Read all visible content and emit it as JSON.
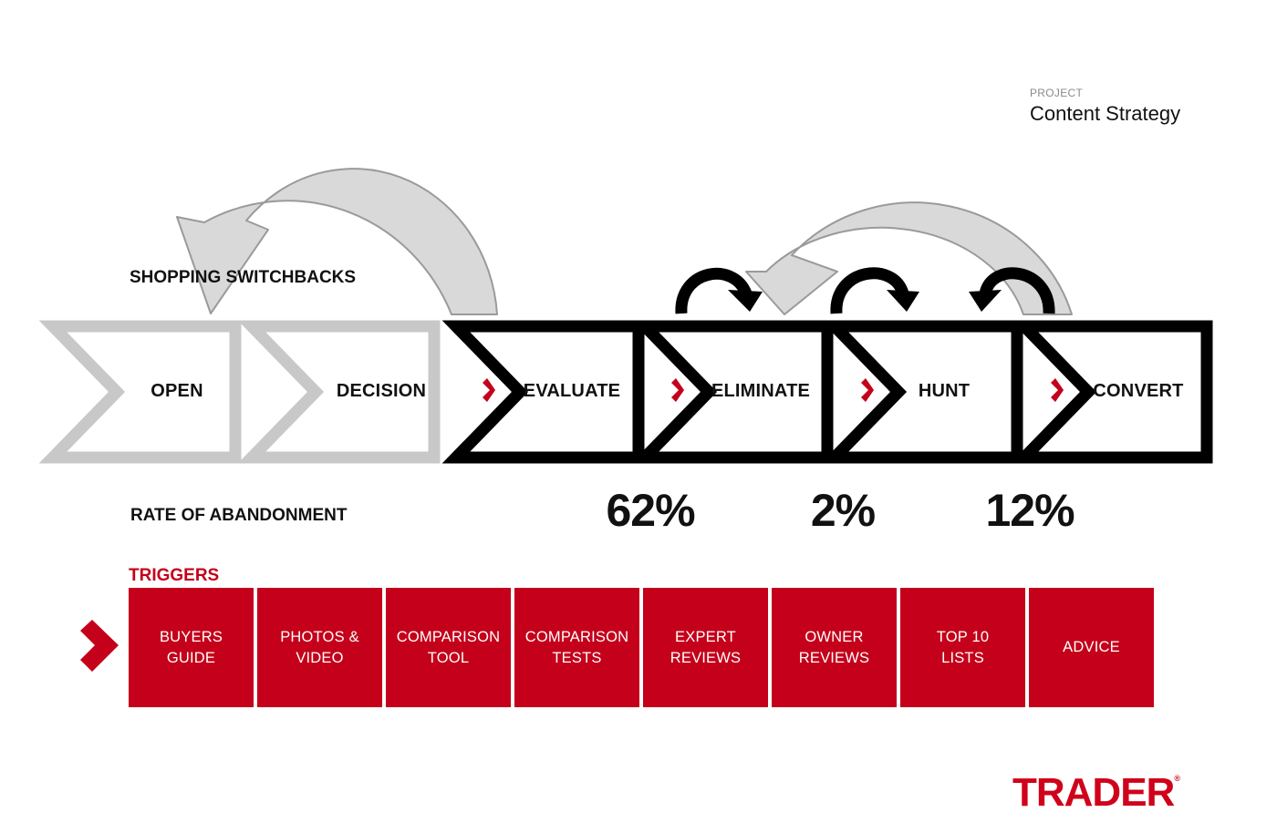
{
  "project": {
    "label": "PROJECT",
    "name": "Content Strategy"
  },
  "switchbacks_label": "SHOPPING SWITCHBACKS",
  "stages": [
    {
      "label": "OPEN",
      "style": "grey",
      "marker": false
    },
    {
      "label": "DECISION",
      "style": "grey",
      "marker": false
    },
    {
      "label": "EVALUATE",
      "style": "black",
      "marker": true
    },
    {
      "label": "ELIMINATE",
      "style": "black",
      "marker": true
    },
    {
      "label": "HUNT",
      "style": "black",
      "marker": true
    },
    {
      "label": "CONVERT",
      "style": "black",
      "marker": true
    }
  ],
  "abandonment": {
    "label": "RATE OF ABANDONMENT",
    "rates": [
      "62%",
      "2%",
      "12%"
    ]
  },
  "triggers": {
    "label": "TRIGGERS",
    "items": [
      "BUYERS\nGUIDE",
      "PHOTOS &\nVIDEO",
      "COMPARISON\nTOOL",
      "COMPARISON\nTESTS",
      "EXPERT\nREVIEWS",
      "OWNER\nREVIEWS",
      "TOP 10\nLISTS",
      "ADVICE"
    ]
  },
  "brand": {
    "logo": "TRADER",
    "mark": "®"
  },
  "colors": {
    "accent": "#c4001a",
    "grey": "#c8c8c8",
    "arrow_fill": "#d9d9d9",
    "black": "#000000"
  }
}
